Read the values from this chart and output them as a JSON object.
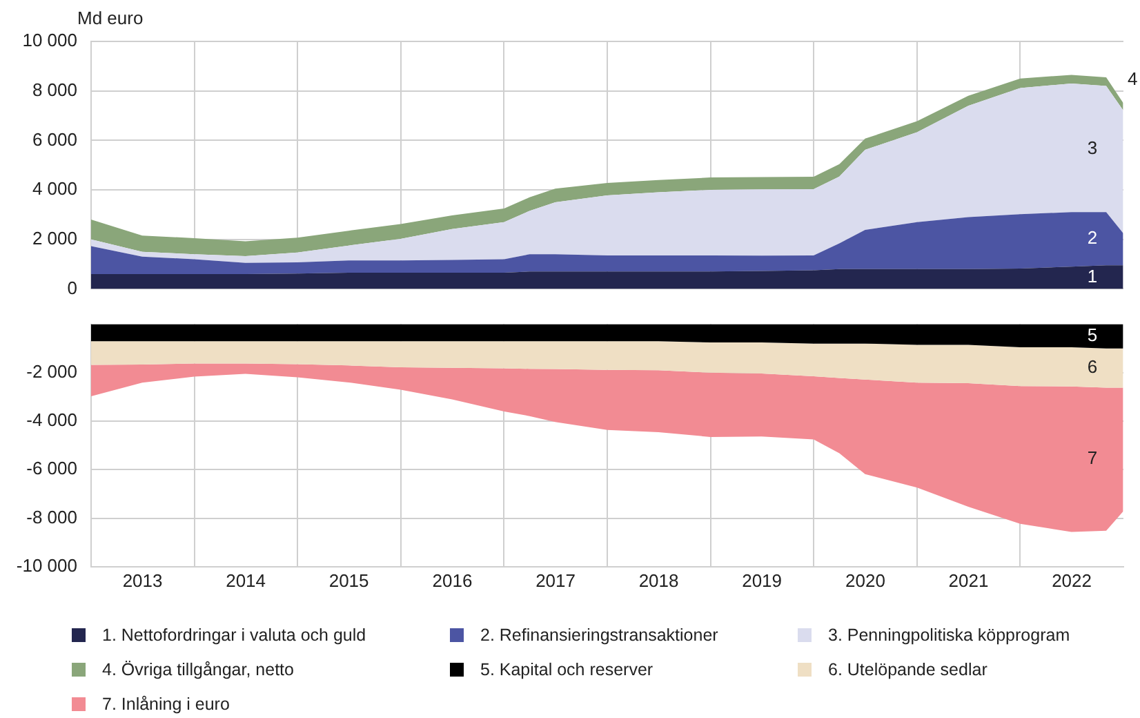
{
  "chart_data": [
    {
      "type": "area",
      "stacked": true,
      "ylabel": "Md euro",
      "tick_labels": "y",
      "x": [
        "2013-01-01",
        "2013-07-01",
        "2014-01-01",
        "2014-07-01",
        "2015-01-01",
        "2015-07-01",
        "2016-01-01",
        "2016-07-01",
        "2017-01-01",
        "2017-04-01",
        "2017-07-01",
        "2018-01-01",
        "2018-07-01",
        "2019-01-01",
        "2019-07-01",
        "2020-01-01",
        "2020-04-01",
        "2020-07-01",
        "2021-01-01",
        "2021-07-01",
        "2022-01-01",
        "2022-07-01",
        "2022-11-01",
        "2022-12-31"
      ],
      "series": [
        {
          "name": "1. Nettofordringar i valuta och guld",
          "color": "#23264f",
          "values": [
            600,
            600,
            600,
            600,
            620,
            650,
            650,
            650,
            650,
            700,
            700,
            700,
            700,
            700,
            720,
            750,
            800,
            800,
            800,
            800,
            820,
            900,
            950,
            950
          ]
        },
        {
          "name": "2. Refinansieringstransaktioner",
          "color": "#4c55a3",
          "values": [
            1130,
            700,
            600,
            450,
            450,
            500,
            500,
            520,
            550,
            700,
            700,
            650,
            650,
            650,
            620,
            600,
            1040,
            1580,
            1900,
            2100,
            2200,
            2200,
            2150,
            1300
          ]
        },
        {
          "name": "3. Penningpolitiska köpprogram",
          "color": "#dadcee",
          "values": [
            270,
            200,
            200,
            270,
            400,
            600,
            870,
            1250,
            1500,
            1750,
            2100,
            2430,
            2550,
            2650,
            2680,
            2680,
            2700,
            3240,
            3630,
            4500,
            5100,
            5200,
            5100,
            4970
          ]
        },
        {
          "name": "4. Övriga tillgångar, netto",
          "color": "#8aa67a",
          "values": [
            800,
            650,
            650,
            600,
            600,
            600,
            600,
            550,
            550,
            550,
            550,
            500,
            500,
            500,
            500,
            500,
            500,
            450,
            450,
            400,
            380,
            350,
            350,
            300
          ]
        }
      ],
      "xlim": [
        "2013-01-01",
        "2023-01-01"
      ],
      "xticks": [
        {
          "value": "2014-01-01",
          "label": null
        },
        {
          "value": "2015-01-01",
          "label": null
        },
        {
          "value": "2016-01-01",
          "label": null
        },
        {
          "value": "2017-01-01",
          "label": null
        },
        {
          "value": "2018-01-01",
          "label": null
        },
        {
          "value": "2019-01-01",
          "label": null
        },
        {
          "value": "2020-01-01",
          "label": null
        },
        {
          "value": "2021-01-01",
          "label": null
        },
        {
          "value": "2022-01-01",
          "label": null
        }
      ],
      "ylim": [
        0,
        10000
      ],
      "yticks": [
        0,
        {
          "value": 2000,
          "label": "2 000"
        },
        {
          "value": 4000,
          "label": "4 000"
        },
        {
          "value": 6000,
          "label": "6 000"
        },
        {
          "value": 8000,
          "label": "8 000"
        },
        {
          "value": 10000,
          "label": "10 000"
        }
      ],
      "grid": true,
      "legend": "bottom",
      "annotations": [
        "1",
        "2",
        "3",
        "4"
      ]
    },
    {
      "type": "area",
      "stacked": true,
      "x": [
        "2013-01-01",
        "2013-07-01",
        "2014-01-01",
        "2014-07-01",
        "2015-01-01",
        "2015-07-01",
        "2016-01-01",
        "2016-07-01",
        "2017-01-01",
        "2017-04-01",
        "2017-07-01",
        "2018-01-01",
        "2018-07-01",
        "2019-01-01",
        "2019-07-01",
        "2020-01-01",
        "2020-04-01",
        "2020-07-01",
        "2021-01-01",
        "2021-07-01",
        "2022-01-01",
        "2022-07-01",
        "2022-11-01",
        "2022-12-31"
      ],
      "series": [
        {
          "name": "5. Kapital och reserver",
          "color": "#000000",
          "values": [
            -700,
            -700,
            -700,
            -700,
            -700,
            -700,
            -700,
            -700,
            -700,
            -700,
            -700,
            -700,
            -700,
            -750,
            -750,
            -800,
            -800,
            -800,
            -850,
            -850,
            -950,
            -950,
            -1000,
            -1000
          ]
        },
        {
          "name": "6. Utelöpande sedlar",
          "color": "#efdfc4",
          "values": [
            -980,
            -960,
            -920,
            -920,
            -950,
            -1000,
            -1080,
            -1100,
            -1120,
            -1140,
            -1150,
            -1180,
            -1200,
            -1250,
            -1280,
            -1350,
            -1420,
            -1480,
            -1560,
            -1580,
            -1600,
            -1620,
            -1620,
            -1620
          ]
        },
        {
          "name": "7. Inlåning i euro",
          "color": "#f28b93",
          "values": [
            -1290,
            -750,
            -540,
            -430,
            -540,
            -700,
            -920,
            -1300,
            -1780,
            -1950,
            -2180,
            -2480,
            -2550,
            -2650,
            -2600,
            -2600,
            -3100,
            -3900,
            -4330,
            -5100,
            -5680,
            -6000,
            -5900,
            -5100
          ]
        }
      ],
      "xlim": [
        "2013-01-01",
        "2023-01-01"
      ],
      "xticks": [
        {
          "value": "2014-01-01",
          "label": null
        },
        {
          "value": "2015-01-01",
          "label": null
        },
        {
          "value": "2016-01-01",
          "label": null
        },
        {
          "value": "2017-01-01",
          "label": null
        },
        {
          "value": "2018-01-01",
          "label": null
        },
        {
          "value": "2019-01-01",
          "label": null
        },
        {
          "value": "2020-01-01",
          "label": null
        },
        {
          "value": "2021-01-01",
          "label": null
        },
        {
          "value": "2022-01-01",
          "label": null
        },
        {
          "value": "2013-07-02",
          "label": "2013"
        },
        {
          "value": "2014-07-02",
          "label": "2014"
        },
        {
          "value": "2015-07-02",
          "label": "2015"
        },
        {
          "value": "2016-07-02",
          "label": "2016"
        },
        {
          "value": "2017-07-02",
          "label": "2017"
        },
        {
          "value": "2018-07-02",
          "label": "2018"
        },
        {
          "value": "2019-07-02",
          "label": "2019"
        },
        {
          "value": "2020-07-02",
          "label": "2020"
        },
        {
          "value": "2021-07-02",
          "label": "2021"
        },
        {
          "value": "2022-07-02",
          "label": "2022"
        }
      ],
      "ylim": [
        -10000,
        0
      ],
      "yticks": [
        {
          "value": -10000,
          "label": "-10 000"
        },
        {
          "value": -8000,
          "label": "-8 000"
        },
        {
          "value": -6000,
          "label": "-6 000"
        },
        {
          "value": -4000,
          "label": "-4 000"
        },
        {
          "value": -2000,
          "label": "-2 000"
        }
      ],
      "grid": true,
      "legend": "bottom",
      "annotations": [
        "5",
        "6",
        "7"
      ]
    }
  ]
}
